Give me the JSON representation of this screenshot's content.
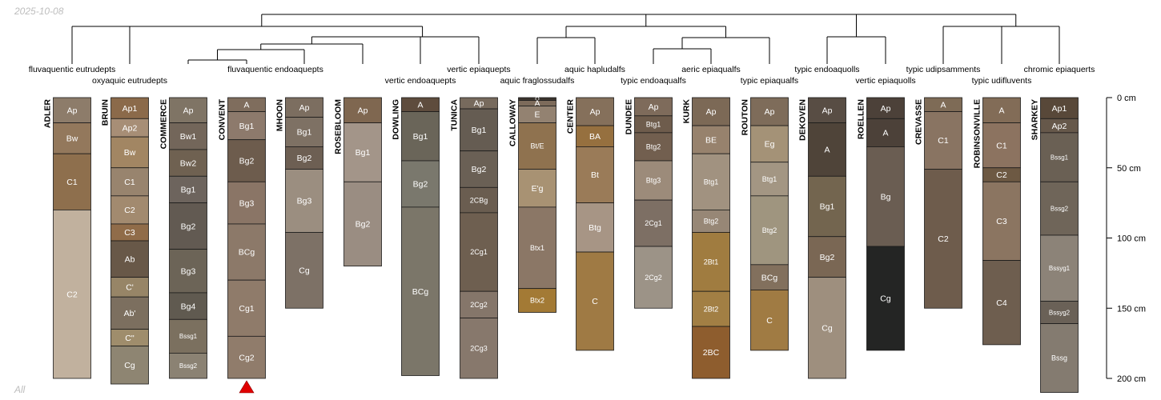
{
  "date_label": "2025-10-08",
  "footer_label": "All",
  "depth_axis": {
    "unit": "cm",
    "max": 200,
    "ticks": [
      {
        "value": 0,
        "label": "0 cm"
      },
      {
        "value": 50,
        "label": "50 cm"
      },
      {
        "value": 100,
        "label": "100 cm"
      },
      {
        "value": 150,
        "label": "150 cm"
      },
      {
        "value": 200,
        "label": "200 cm"
      }
    ]
  },
  "groups": [
    {
      "label": "fluvaquentic eutrudepts",
      "profiles": [
        0
      ],
      "tier": 1
    },
    {
      "label": "oxyaquic eutrudepts",
      "profiles": [
        1
      ],
      "tier": 2
    },
    {
      "label": "fluvaquentic endoaquepts",
      "profiles": [
        2,
        3,
        4,
        5
      ],
      "tier": 1
    },
    {
      "label": "vertic endoaquepts",
      "profiles": [
        6
      ],
      "tier": 2
    },
    {
      "label": "vertic epiaquepts",
      "profiles": [
        7
      ],
      "tier": 1
    },
    {
      "label": "aquic fraglossudalfs",
      "profiles": [
        8
      ],
      "tier": 2
    },
    {
      "label": "aquic hapludalfs",
      "profiles": [
        9
      ],
      "tier": 1
    },
    {
      "label": "typic endoaqualfs",
      "profiles": [
        10
      ],
      "tier": 2
    },
    {
      "label": "aeric epiaqualfs",
      "profiles": [
        11
      ],
      "tier": 1
    },
    {
      "label": "typic epiaqualfs",
      "profiles": [
        12
      ],
      "tier": 2
    },
    {
      "label": "typic endoaquolls",
      "profiles": [
        13
      ],
      "tier": 1
    },
    {
      "label": "vertic epiaquolls",
      "profiles": [
        14
      ],
      "tier": 2
    },
    {
      "label": "typic udipsamments",
      "profiles": [
        15
      ],
      "tier": 1
    },
    {
      "label": "typic udifluvents",
      "profiles": [
        16
      ],
      "tier": 2
    },
    {
      "label": "chromic epiaquerts",
      "profiles": [
        17
      ],
      "tier": 1
    }
  ],
  "profiles": [
    {
      "name": "ADLER",
      "horizons": [
        {
          "name": "Ap",
          "top": 0,
          "bottom": 18,
          "color": "#8d7c6a"
        },
        {
          "name": "Bw",
          "top": 18,
          "bottom": 40,
          "color": "#93785c"
        },
        {
          "name": "C1",
          "top": 40,
          "bottom": 80,
          "color": "#8e6f4d"
        },
        {
          "name": "C2",
          "top": 80,
          "bottom": 200,
          "color": "#c1b19e"
        }
      ]
    },
    {
      "name": "BRUIN",
      "horizons": [
        {
          "name": "Ap1",
          "top": 0,
          "bottom": 15,
          "color": "#8b6a4a"
        },
        {
          "name": "Ap2",
          "top": 15,
          "bottom": 28,
          "color": "#a78e76"
        },
        {
          "name": "Bw",
          "top": 28,
          "bottom": 50,
          "color": "#a28663"
        },
        {
          "name": "C1",
          "top": 50,
          "bottom": 70,
          "color": "#98846e"
        },
        {
          "name": "C2",
          "top": 70,
          "bottom": 90,
          "color": "#a28a6f"
        },
        {
          "name": "C3",
          "top": 90,
          "bottom": 102,
          "color": "#906c49"
        },
        {
          "name": "Ab",
          "top": 102,
          "bottom": 128,
          "color": "#685848"
        },
        {
          "name": "C'",
          "top": 128,
          "bottom": 142,
          "color": "#978567"
        },
        {
          "name": "Ab'",
          "top": 142,
          "bottom": 165,
          "color": "#7c6f5f"
        },
        {
          "name": "C''",
          "top": 165,
          "bottom": 177,
          "color": "#9f8d6c"
        },
        {
          "name": "Cg",
          "top": 177,
          "bottom": 204,
          "color": "#8e8572"
        }
      ]
    },
    {
      "name": "COMMERCE",
      "horizons": [
        {
          "name": "Ap",
          "top": 0,
          "bottom": 18,
          "color": "#7f7465"
        },
        {
          "name": "Bw1",
          "top": 18,
          "bottom": 37,
          "color": "#73665a"
        },
        {
          "name": "Bw2",
          "top": 37,
          "bottom": 56,
          "color": "#6f6151"
        },
        {
          "name": "Bg1",
          "top": 56,
          "bottom": 75,
          "color": "#6d645d"
        },
        {
          "name": "Bg2",
          "top": 75,
          "bottom": 108,
          "color": "#625a52"
        },
        {
          "name": "Bg3",
          "top": 108,
          "bottom": 139,
          "color": "#6c6457"
        },
        {
          "name": "Bg4",
          "top": 139,
          "bottom": 158,
          "color": "#605a50"
        },
        {
          "name": "Bssg1",
          "top": 158,
          "bottom": 182,
          "color": "#7b705f"
        },
        {
          "name": "Bssg2",
          "top": 182,
          "bottom": 200,
          "color": "#8b8273"
        }
      ]
    },
    {
      "name": "CONVENT",
      "horizons": [
        {
          "name": "A",
          "top": 0,
          "bottom": 10,
          "color": "#7f6d5d"
        },
        {
          "name": "Bg1",
          "top": 10,
          "bottom": 30,
          "color": "#8d7a6c"
        },
        {
          "name": "Bg2",
          "top": 30,
          "bottom": 60,
          "color": "#6d5c4d"
        },
        {
          "name": "Bg3",
          "top": 60,
          "bottom": 90,
          "color": "#8a7566"
        },
        {
          "name": "BCg",
          "top": 90,
          "bottom": 130,
          "color": "#8c7969"
        },
        {
          "name": "Cg1",
          "top": 130,
          "bottom": 170,
          "color": "#8f7b6a"
        },
        {
          "name": "Cg2",
          "top": 170,
          "bottom": 200,
          "color": "#907c6b"
        }
      ],
      "truncated": true
    },
    {
      "name": "MHOON",
      "horizons": [
        {
          "name": "Ap",
          "top": 0,
          "bottom": 14,
          "color": "#7c6e60"
        },
        {
          "name": "Bg1",
          "top": 14,
          "bottom": 35,
          "color": "#7e7164"
        },
        {
          "name": "Bg2",
          "top": 35,
          "bottom": 51,
          "color": "#6d5f53"
        },
        {
          "name": "Bg3",
          "top": 51,
          "bottom": 96,
          "color": "#9b8e80"
        },
        {
          "name": "Cg",
          "top": 96,
          "bottom": 150,
          "color": "#7d7166"
        }
      ]
    },
    {
      "name": "ROSEBLOOM",
      "horizons": [
        {
          "name": "Ap",
          "top": 0,
          "bottom": 18,
          "color": "#7f6750"
        },
        {
          "name": "Bg1",
          "top": 18,
          "bottom": 60,
          "color": "#a39589"
        },
        {
          "name": "Bg2",
          "top": 60,
          "bottom": 120,
          "color": "#9a8d82"
        }
      ]
    },
    {
      "name": "DOWLING",
      "horizons": [
        {
          "name": "A",
          "top": 0,
          "bottom": 10,
          "color": "#5e4c3d"
        },
        {
          "name": "Bg1",
          "top": 10,
          "bottom": 45,
          "color": "#6a6559"
        },
        {
          "name": "Bg2",
          "top": 45,
          "bottom": 78,
          "color": "#7a786d"
        },
        {
          "name": "BCg",
          "top": 78,
          "bottom": 198,
          "color": "#7b7669"
        }
      ]
    },
    {
      "name": "TUNICA",
      "horizons": [
        {
          "name": "Ap",
          "top": 0,
          "bottom": 8,
          "color": "#776a5d"
        },
        {
          "name": "Bg1",
          "top": 8,
          "bottom": 38,
          "color": "#655c52"
        },
        {
          "name": "Bg2",
          "top": 38,
          "bottom": 64,
          "color": "#6a6055"
        },
        {
          "name": "2CBg",
          "top": 64,
          "bottom": 82,
          "color": "#6a5d50"
        },
        {
          "name": "2Cg1",
          "top": 82,
          "bottom": 138,
          "color": "#6e5f50"
        },
        {
          "name": "2Cg2",
          "top": 138,
          "bottom": 157,
          "color": "#85766a"
        },
        {
          "name": "2Cg3",
          "top": 157,
          "bottom": 200,
          "color": "#87786c"
        }
      ]
    },
    {
      "name": "CALLOWAY",
      "horizons": [
        {
          "name": "O",
          "top": 0,
          "bottom": 2,
          "color": "#3b342d"
        },
        {
          "name": "A",
          "top": 2,
          "bottom": 6,
          "color": "#7d6b5b"
        },
        {
          "name": "E",
          "top": 6,
          "bottom": 18,
          "color": "#938271"
        },
        {
          "name": "Bt/E",
          "top": 18,
          "bottom": 51,
          "color": "#8f724f"
        },
        {
          "name": "E'g",
          "top": 51,
          "bottom": 78,
          "color": "#a89273"
        },
        {
          "name": "Btx1",
          "top": 78,
          "bottom": 136,
          "color": "#8b7766"
        },
        {
          "name": "Btx2",
          "top": 136,
          "bottom": 153,
          "color": "#a37a35"
        }
      ]
    },
    {
      "name": "CENTER",
      "horizons": [
        {
          "name": "Ap",
          "top": 0,
          "bottom": 20,
          "color": "#85705b"
        },
        {
          "name": "BA",
          "top": 20,
          "bottom": 35,
          "color": "#96703f"
        },
        {
          "name": "Bt",
          "top": 35,
          "bottom": 75,
          "color": "#9a7b58"
        },
        {
          "name": "Btg",
          "top": 75,
          "bottom": 110,
          "color": "#a79585"
        },
        {
          "name": "C",
          "top": 110,
          "bottom": 180,
          "color": "#9f7a44"
        }
      ]
    },
    {
      "name": "DUNDEE",
      "horizons": [
        {
          "name": "Ap",
          "top": 0,
          "bottom": 13,
          "color": "#7e6b5b"
        },
        {
          "name": "Btg1",
          "top": 13,
          "bottom": 25,
          "color": "#6e5c4c"
        },
        {
          "name": "Btg2",
          "top": 25,
          "bottom": 45,
          "color": "#725f4f"
        },
        {
          "name": "Btg3",
          "top": 45,
          "bottom": 73,
          "color": "#9c8b7a"
        },
        {
          "name": "2Cg1",
          "top": 73,
          "bottom": 106,
          "color": "#7d6f64"
        },
        {
          "name": "2Cg2",
          "top": 106,
          "bottom": 150,
          "color": "#9c9387"
        }
      ]
    },
    {
      "name": "KURK",
      "horizons": [
        {
          "name": "Ap",
          "top": 0,
          "bottom": 20,
          "color": "#7c6956"
        },
        {
          "name": "BE",
          "top": 20,
          "bottom": 40,
          "color": "#97826d"
        },
        {
          "name": "Btg1",
          "top": 40,
          "bottom": 80,
          "color": "#a19280"
        },
        {
          "name": "Btg2",
          "top": 80,
          "bottom": 96,
          "color": "#978776"
        },
        {
          "name": "2Bt1",
          "top": 96,
          "bottom": 138,
          "color": "#a07c40"
        },
        {
          "name": "2Bt2",
          "top": 138,
          "bottom": 163,
          "color": "#a27f44"
        },
        {
          "name": "2BC",
          "top": 163,
          "bottom": 200,
          "color": "#8e5d2e"
        }
      ]
    },
    {
      "name": "ROUTON",
      "horizons": [
        {
          "name": "Ap",
          "top": 0,
          "bottom": 20,
          "color": "#7e6c5a"
        },
        {
          "name": "Eg",
          "top": 20,
          "bottom": 46,
          "color": "#a49277"
        },
        {
          "name": "Btg1",
          "top": 46,
          "bottom": 70,
          "color": "#a39683"
        },
        {
          "name": "Btg2",
          "top": 70,
          "bottom": 119,
          "color": "#9f957f"
        },
        {
          "name": "BCg",
          "top": 119,
          "bottom": 137,
          "color": "#82705d"
        },
        {
          "name": "C",
          "top": 137,
          "bottom": 180,
          "color": "#a07b43"
        }
      ]
    },
    {
      "name": "DEKOVEN",
      "horizons": [
        {
          "name": "Ap",
          "top": 0,
          "bottom": 18,
          "color": "#584d44"
        },
        {
          "name": "A",
          "top": 18,
          "bottom": 56,
          "color": "#4f4439"
        },
        {
          "name": "Bg1",
          "top": 56,
          "bottom": 99,
          "color": "#73654f"
        },
        {
          "name": "Bg2",
          "top": 99,
          "bottom": 128,
          "color": "#7a6754"
        },
        {
          "name": "Cg",
          "top": 128,
          "bottom": 200,
          "color": "#9e8f7e"
        }
      ]
    },
    {
      "name": "ROELLEN",
      "horizons": [
        {
          "name": "Ap",
          "top": 0,
          "bottom": 15,
          "color": "#4c4139"
        },
        {
          "name": "A",
          "top": 15,
          "bottom": 35,
          "color": "#4c4139"
        },
        {
          "name": "Bg",
          "top": 35,
          "bottom": 106,
          "color": "#6a5d52"
        },
        {
          "name": "Cg",
          "top": 106,
          "bottom": 180,
          "color": "#242524"
        }
      ]
    },
    {
      "name": "CREVASSE",
      "horizons": [
        {
          "name": "A",
          "top": 0,
          "bottom": 10,
          "color": "#7e6b56"
        },
        {
          "name": "C1",
          "top": 10,
          "bottom": 51,
          "color": "#897462"
        },
        {
          "name": "C2",
          "top": 51,
          "bottom": 150,
          "color": "#6e5c4c"
        }
      ]
    },
    {
      "name": "ROBINSONVILLE",
      "horizons": [
        {
          "name": "A",
          "top": 0,
          "bottom": 18,
          "color": "#826c57"
        },
        {
          "name": "C1",
          "top": 18,
          "bottom": 50,
          "color": "#8c7360"
        },
        {
          "name": "C2",
          "top": 50,
          "bottom": 60,
          "color": "#6d5943"
        },
        {
          "name": "C3",
          "top": 60,
          "bottom": 116,
          "color": "#8b7561"
        },
        {
          "name": "C4",
          "top": 116,
          "bottom": 176,
          "color": "#6e5e4f"
        }
      ]
    },
    {
      "name": "SHARKEY",
      "horizons": [
        {
          "name": "Ap1",
          "top": 0,
          "bottom": 15,
          "color": "#584839"
        },
        {
          "name": "Ap2",
          "top": 15,
          "bottom": 25,
          "color": "#66584a"
        },
        {
          "name": "Bssg1",
          "top": 25,
          "bottom": 60,
          "color": "#6a6054"
        },
        {
          "name": "Bssg2",
          "top": 60,
          "bottom": 98,
          "color": "#6f6559"
        },
        {
          "name": "Bssyg1",
          "top": 98,
          "bottom": 145,
          "color": "#8c8378"
        },
        {
          "name": "Bssyg2",
          "top": 145,
          "bottom": 161,
          "color": "#6a6157"
        },
        {
          "name": "Bssg",
          "top": 161,
          "bottom": 210,
          "color": "#847b70"
        }
      ]
    }
  ]
}
